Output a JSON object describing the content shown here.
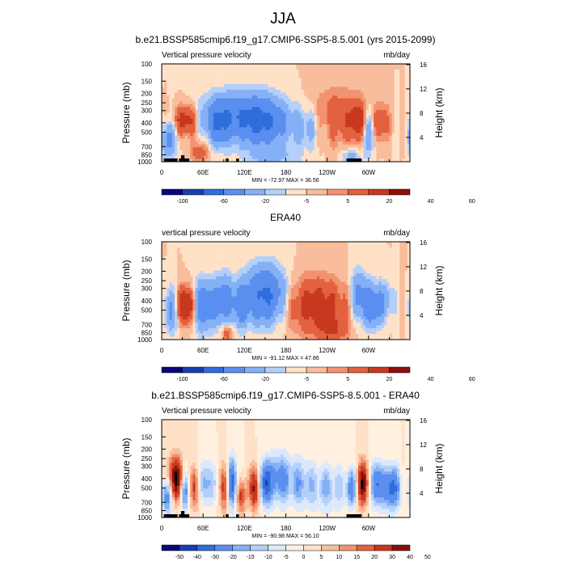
{
  "figure": {
    "title": "JJA"
  },
  "colors": {
    "div12": [
      "#08087a",
      "#1a3fb3",
      "#2f6ddc",
      "#5a8ff0",
      "#86b0f5",
      "#b4d0fa",
      "#ffe1c8",
      "#f8bd9c",
      "#f29270",
      "#e2613e",
      "#c8381f",
      "#8b0f0a"
    ],
    "div14": [
      "#08087a",
      "#1a3fb3",
      "#2f6ddc",
      "#5a8ff0",
      "#86b0f5",
      "#b4d0fa",
      "#dbe9fd",
      "#fff0e0",
      "#ffe1c8",
      "#f8bd9c",
      "#f29270",
      "#e2613e",
      "#c8381f",
      "#8b0f0a"
    ]
  },
  "chart_data": [
    {
      "type": "heatmap",
      "title": "b.e21.BSSP585cmip6.f19_g17.CMIP6-SSP5-8.5.001 (yrs 2015-2099)",
      "left_label": "Vertical pressure velocity",
      "right_label": "mb/day",
      "ylabel": "Pressure (mb)",
      "ylabel_right": "Height (km)",
      "x_ticks": [
        "0",
        "60E",
        "120E",
        "180",
        "120W",
        "60W"
      ],
      "x_tick_values": [
        0,
        60,
        120,
        180,
        240,
        300
      ],
      "xlim": [
        0,
        360
      ],
      "y_ticks": [
        "100",
        "150",
        "200",
        "250",
        "300",
        "400",
        "500",
        "700",
        "850",
        "1000"
      ],
      "y_tick_values": [
        100,
        150,
        200,
        250,
        300,
        400,
        500,
        700,
        850,
        1000
      ],
      "ylim": [
        1000,
        100
      ],
      "height_ticks": [
        "4",
        "8",
        "12",
        "16"
      ],
      "height_tick_values": [
        4,
        8,
        12,
        16
      ],
      "stats": "MIN = -72.97  MAX = 36.56",
      "colorbar_labels": [
        "-100",
        "-60",
        "-20",
        "-5",
        "5",
        "20",
        "40",
        "60"
      ],
      "colorbar_levels": [
        -100,
        -80,
        -60,
        -40,
        -20,
        -10,
        -5,
        0,
        5,
        10,
        20,
        40,
        60
      ],
      "features": [
        {
          "lon": 35,
          "p": 380,
          "w": 12,
          "h": 0.25,
          "amp": 30
        },
        {
          "lon": 10,
          "p": 600,
          "w": 8,
          "h": 0.3,
          "amp": -25
        },
        {
          "lon": 55,
          "p": 800,
          "w": 10,
          "h": 0.2,
          "amp": 15
        },
        {
          "lon": 110,
          "p": 350,
          "w": 35,
          "h": 0.38,
          "amp": -35
        },
        {
          "lon": 150,
          "p": 400,
          "w": 22,
          "h": 0.4,
          "amp": -30
        },
        {
          "lon": 82,
          "p": 420,
          "w": 10,
          "h": 0.35,
          "amp": -25
        },
        {
          "lon": 210,
          "p": 450,
          "w": 18,
          "h": 0.35,
          "amp": -15
        },
        {
          "lon": 255,
          "p": 350,
          "w": 25,
          "h": 0.45,
          "amp": 18
        },
        {
          "lon": 285,
          "p": 380,
          "w": 8,
          "h": 0.3,
          "amp": 25
        },
        {
          "lon": 300,
          "p": 500,
          "w": 6,
          "h": 0.35,
          "amp": -22
        },
        {
          "lon": 318,
          "p": 400,
          "w": 8,
          "h": 0.3,
          "amp": 20
        },
        {
          "lon": 275,
          "p": 900,
          "w": 10,
          "h": 0.15,
          "amp": -15
        },
        {
          "lon": 160,
          "p": 900,
          "w": 30,
          "h": 0.15,
          "amp": -10
        }
      ]
    },
    {
      "type": "heatmap",
      "title": "ERA40",
      "left_label": "vertical pressure velocity",
      "right_label": "mb/day",
      "ylabel": "Pressure (mb)",
      "ylabel_right": "Height (km)",
      "x_ticks": [
        "0",
        "60E",
        "120E",
        "180",
        "120W",
        "60W"
      ],
      "x_tick_values": [
        0,
        60,
        120,
        180,
        240,
        300
      ],
      "xlim": [
        0,
        360
      ],
      "y_ticks": [
        "100",
        "150",
        "200",
        "250",
        "300",
        "400",
        "500",
        "700",
        "850",
        "1000"
      ],
      "y_tick_values": [
        100,
        150,
        200,
        250,
        300,
        400,
        500,
        700,
        850,
        1000
      ],
      "ylim": [
        1000,
        100
      ],
      "height_ticks": [
        "4",
        "8",
        "12",
        "16"
      ],
      "height_tick_values": [
        4,
        8,
        12,
        16
      ],
      "stats": "MIN = -91.12  MAX = 47.86",
      "colorbar_labels": [
        "-100",
        "-60",
        "-20",
        "-5",
        "5",
        "20",
        "40",
        "60"
      ],
      "colorbar_levels": [
        -100,
        -80,
        -60,
        -40,
        -20,
        -10,
        -5,
        0,
        5,
        10,
        20,
        40,
        60
      ],
      "features": [
        {
          "lon": 35,
          "p": 450,
          "w": 10,
          "h": 0.3,
          "amp": 45
        },
        {
          "lon": 15,
          "p": 500,
          "w": 8,
          "h": 0.35,
          "amp": -25
        },
        {
          "lon": 60,
          "p": 450,
          "w": 12,
          "h": 0.4,
          "amp": -35
        },
        {
          "lon": 90,
          "p": 400,
          "w": 10,
          "h": 0.4,
          "amp": -30
        },
        {
          "lon": 115,
          "p": 450,
          "w": 8,
          "h": 0.35,
          "amp": -25
        },
        {
          "lon": 150,
          "p": 350,
          "w": 20,
          "h": 0.45,
          "amp": -45
        },
        {
          "lon": 225,
          "p": 450,
          "w": 30,
          "h": 0.45,
          "amp": 28
        },
        {
          "lon": 285,
          "p": 350,
          "w": 8,
          "h": 0.4,
          "amp": -25
        },
        {
          "lon": 305,
          "p": 450,
          "w": 10,
          "h": 0.35,
          "amp": -35
        },
        {
          "lon": 325,
          "p": 400,
          "w": 8,
          "h": 0.3,
          "amp": -15
        },
        {
          "lon": 95,
          "p": 850,
          "w": 5,
          "h": 0.15,
          "amp": 20
        },
        {
          "lon": 248,
          "p": 800,
          "w": 15,
          "h": 0.2,
          "amp": 15
        }
      ]
    },
    {
      "type": "heatmap",
      "title": "b.e21.BSSP585cmip6.f19_g17.CMIP6-SSP5-8.5.001 - ERA40",
      "left_label": "Vertical pressure velocity",
      "right_label": "mb/day",
      "ylabel": "Pressure (mb)",
      "ylabel_right": "Height (km)",
      "x_ticks": [
        "0",
        "60E",
        "120E",
        "180",
        "120W",
        "60W"
      ],
      "x_tick_values": [
        0,
        60,
        120,
        180,
        240,
        300
      ],
      "xlim": [
        0,
        360
      ],
      "y_ticks": [
        "100",
        "150",
        "200",
        "250",
        "300",
        "400",
        "500",
        "700",
        "850",
        "1000"
      ],
      "y_tick_values": [
        100,
        150,
        200,
        250,
        300,
        400,
        500,
        700,
        850,
        1000
      ],
      "ylim": [
        1000,
        100
      ],
      "height_ticks": [
        "4",
        "8",
        "12",
        "16"
      ],
      "height_tick_values": [
        4,
        8,
        12,
        16
      ],
      "stats": "MIN = -90.98  MAX = 56.10",
      "colorbar_labels": [
        "-50",
        "-40",
        "-30",
        "-20",
        "-15",
        "-10",
        "-5",
        "0",
        "5",
        "10",
        "15",
        "20",
        "30",
        "40",
        "50"
      ],
      "colorbar_levels": [
        -60,
        -50,
        -40,
        -30,
        -20,
        -15,
        -10,
        -5,
        0,
        5,
        10,
        15,
        20,
        30,
        40,
        50,
        60
      ],
      "features": [
        {
          "lon": 20,
          "p": 400,
          "w": 7,
          "h": 0.35,
          "amp": 45
        },
        {
          "lon": 8,
          "p": 600,
          "w": 5,
          "h": 0.3,
          "amp": -30
        },
        {
          "lon": 33,
          "p": 550,
          "w": 5,
          "h": 0.3,
          "amp": -25
        },
        {
          "lon": 48,
          "p": 500,
          "w": 6,
          "h": 0.35,
          "amp": 20
        },
        {
          "lon": 65,
          "p": 450,
          "w": 8,
          "h": 0.35,
          "amp": -20
        },
        {
          "lon": 92,
          "p": 500,
          "w": 5,
          "h": 0.4,
          "amp": 25
        },
        {
          "lon": 102,
          "p": 450,
          "w": 5,
          "h": 0.4,
          "amp": -40
        },
        {
          "lon": 115,
          "p": 600,
          "w": 5,
          "h": 0.3,
          "amp": 25
        },
        {
          "lon": 135,
          "p": 500,
          "w": 5,
          "h": 0.35,
          "amp": 35
        },
        {
          "lon": 150,
          "p": 450,
          "w": 6,
          "h": 0.35,
          "amp": -35
        },
        {
          "lon": 170,
          "p": 400,
          "w": 12,
          "h": 0.4,
          "amp": -25
        },
        {
          "lon": 200,
          "p": 450,
          "w": 12,
          "h": 0.4,
          "amp": -15
        },
        {
          "lon": 240,
          "p": 500,
          "w": 20,
          "h": 0.4,
          "amp": -15
        },
        {
          "lon": 275,
          "p": 500,
          "w": 5,
          "h": 0.3,
          "amp": -25
        },
        {
          "lon": 292,
          "p": 450,
          "w": 6,
          "h": 0.35,
          "amp": 40
        },
        {
          "lon": 310,
          "p": 450,
          "w": 6,
          "h": 0.35,
          "amp": -30
        },
        {
          "lon": 332,
          "p": 500,
          "w": 10,
          "h": 0.35,
          "amp": -35
        }
      ]
    }
  ]
}
